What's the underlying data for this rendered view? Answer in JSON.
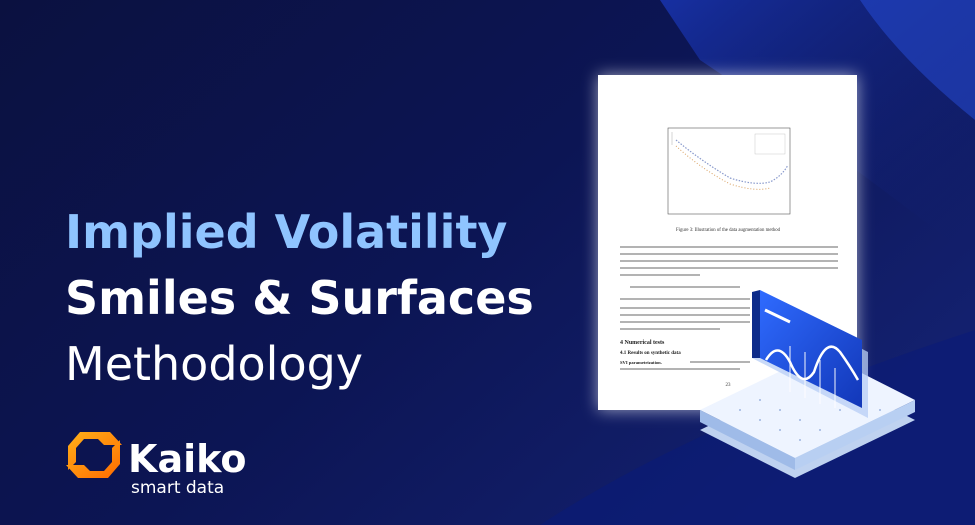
{
  "headline": {
    "line1": "Implied Volatility",
    "line2": "Smiles & Surfaces",
    "line3": "Methodology"
  },
  "brand": {
    "name": "Kaiko",
    "tagline": "smart data"
  },
  "paper": {
    "figure_caption": "Figure 3: Illustration of the data augmentation method",
    "section": "4    Numerical tests",
    "subsection": "4.1    Results on synthetic data",
    "paragraph_label": "SVI parametrization.",
    "page_number": "23"
  }
}
